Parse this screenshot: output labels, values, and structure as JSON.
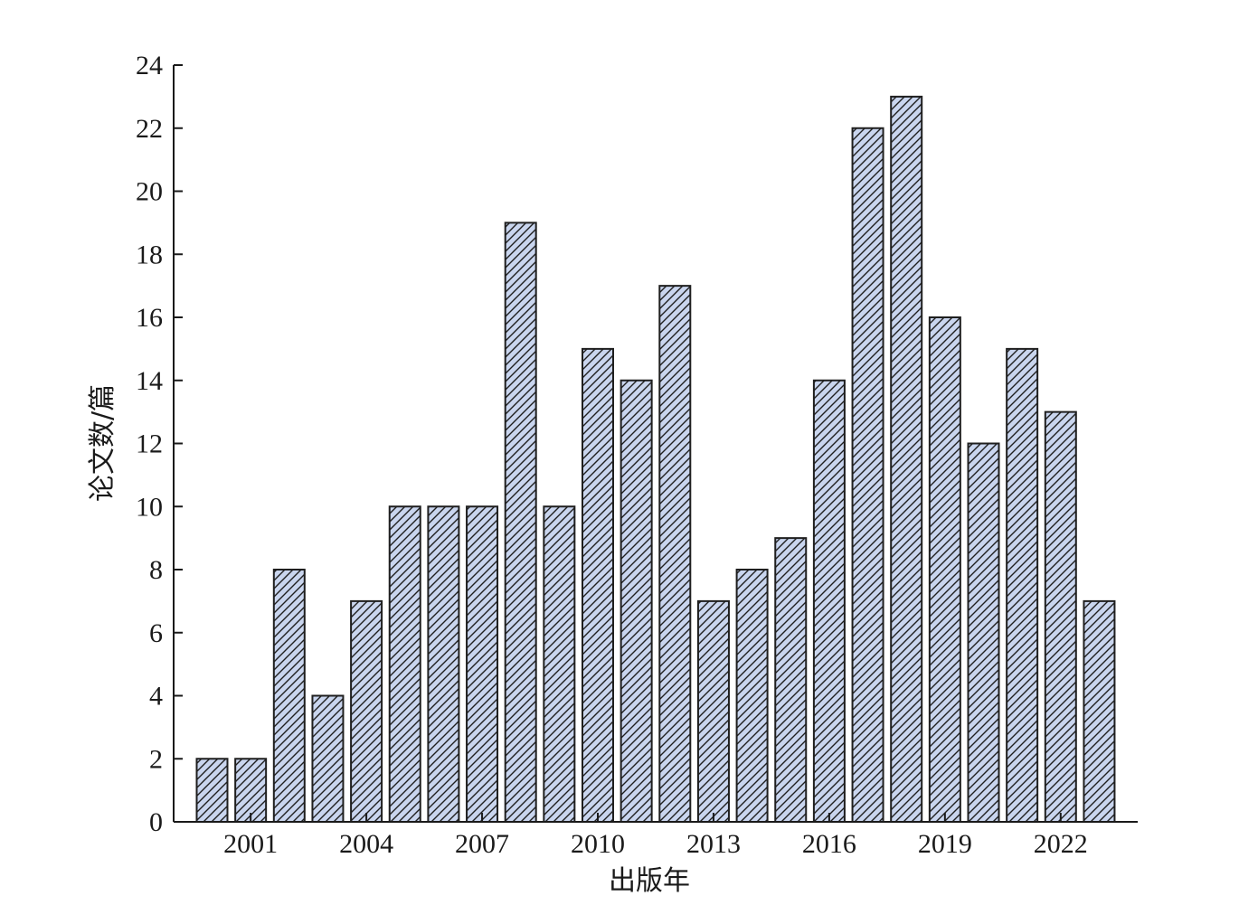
{
  "chart_data": {
    "type": "bar",
    "xlabel": "出版年",
    "ylabel": "论文数/篇",
    "ylim": [
      0,
      24
    ],
    "yticks": [
      0,
      2,
      4,
      6,
      8,
      10,
      12,
      14,
      16,
      18,
      20,
      22,
      24
    ],
    "xtick_labels": [
      "2001",
      "2004",
      "2007",
      "2010",
      "2013",
      "2016",
      "2019",
      "2022"
    ],
    "categories": [
      2000,
      2001,
      2002,
      2003,
      2004,
      2005,
      2006,
      2007,
      2008,
      2009,
      2010,
      2011,
      2012,
      2013,
      2014,
      2015,
      2016,
      2017,
      2018,
      2019,
      2020,
      2021,
      2022,
      2023
    ],
    "values": [
      2,
      2,
      8,
      4,
      7,
      10,
      10,
      10,
      19,
      10,
      15,
      14,
      17,
      7,
      8,
      9,
      14,
      22,
      23,
      16,
      12,
      15,
      13,
      7
    ],
    "bar_fill": "#c9d5ee",
    "bar_hatch": "diagonal",
    "grid": false,
    "legend": "none"
  }
}
